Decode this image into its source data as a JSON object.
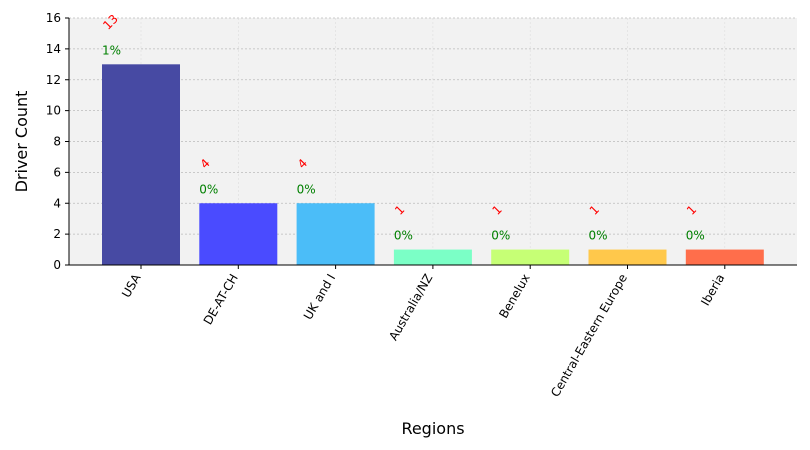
{
  "chart_data": {
    "type": "bar",
    "title": "",
    "xlabel": "Regions",
    "ylabel": "Driver Count",
    "categories": [
      "USA",
      "DE-AT-CH",
      "UK and I",
      "Australia/NZ",
      "Benelux",
      "Central-Eastern Europe",
      "Iberia"
    ],
    "values": [
      13,
      4,
      4,
      1,
      1,
      1,
      1
    ],
    "percent_labels": [
      "1%",
      "0%",
      "0%",
      "0%",
      "0%",
      "0%",
      "0%"
    ],
    "bar_colors": [
      "#474aa3",
      "#4a4bff",
      "#4bbdf8",
      "#7bffc6",
      "#c6ff75",
      "#ffc84b",
      "#ff6e4b"
    ],
    "ylim": [
      0,
      16
    ],
    "yticks": [
      0,
      2,
      4,
      6,
      8,
      10,
      12,
      14,
      16
    ],
    "grid": true,
    "colors": {
      "plot_background": "#f2f2f2",
      "count_label": "#ff0000",
      "percent_label": "#008000",
      "grid": "#bbbbbb",
      "axis": "#000000"
    }
  }
}
